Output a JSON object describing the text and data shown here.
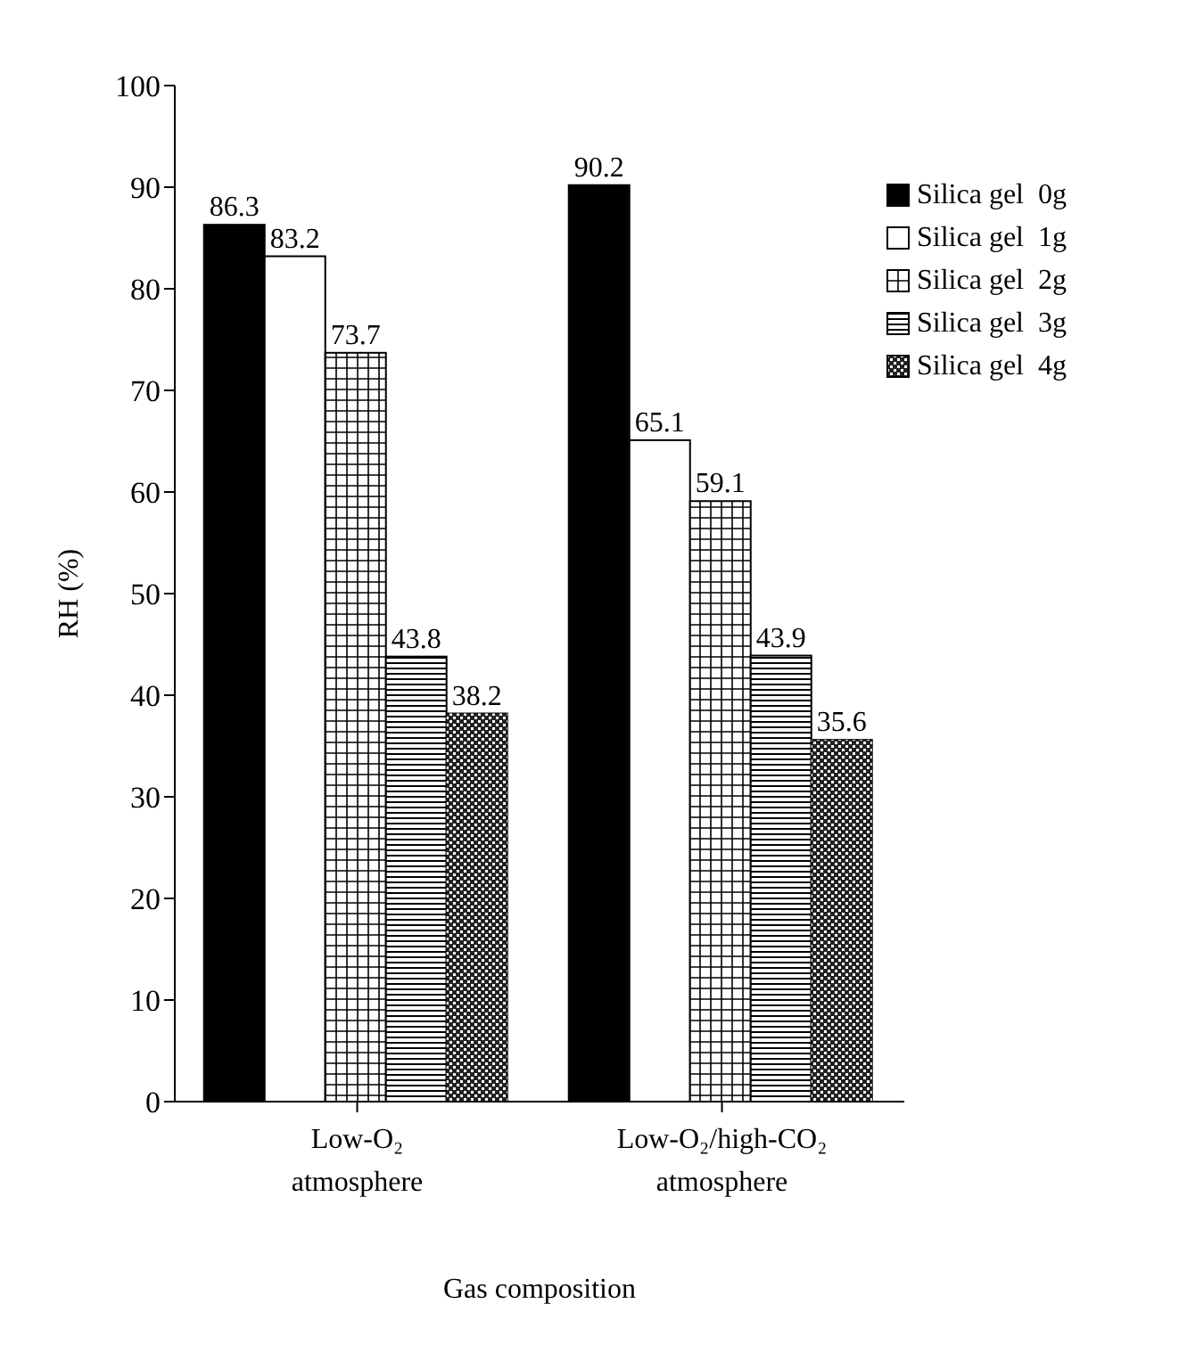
{
  "chart_data": {
    "type": "bar",
    "xlabel": "Gas composition",
    "ylabel": "RH (%)",
    "categories": [
      "Low-O₂\natmosphere",
      "Low-O₂/high-CO₂\natmosphere"
    ],
    "series": [
      {
        "name": "Silica gel  0g",
        "color": "#000000",
        "values": [
          86.3,
          90.2
        ]
      },
      {
        "name": "Silica gel  1g",
        "color": "#ffffff",
        "values": [
          83.2,
          65.1
        ]
      },
      {
        "name": "Silica gel  2g",
        "color": "#ffffff",
        "values": [
          73.7,
          59.1
        ]
      },
      {
        "name": "Silica gel  3g",
        "color": "#ffffff",
        "values": [
          43.8,
          43.9
        ]
      },
      {
        "name": "Silica gel  4g",
        "color": "#ffffff",
        "values": [
          38.2,
          35.6
        ]
      }
    ],
    "ylim": [
      0,
      100
    ],
    "yticks": [
      0,
      10,
      20,
      30,
      40,
      50,
      60,
      70,
      80,
      90,
      100
    ],
    "grid": false,
    "legend": "top right",
    "data_labels": true
  }
}
